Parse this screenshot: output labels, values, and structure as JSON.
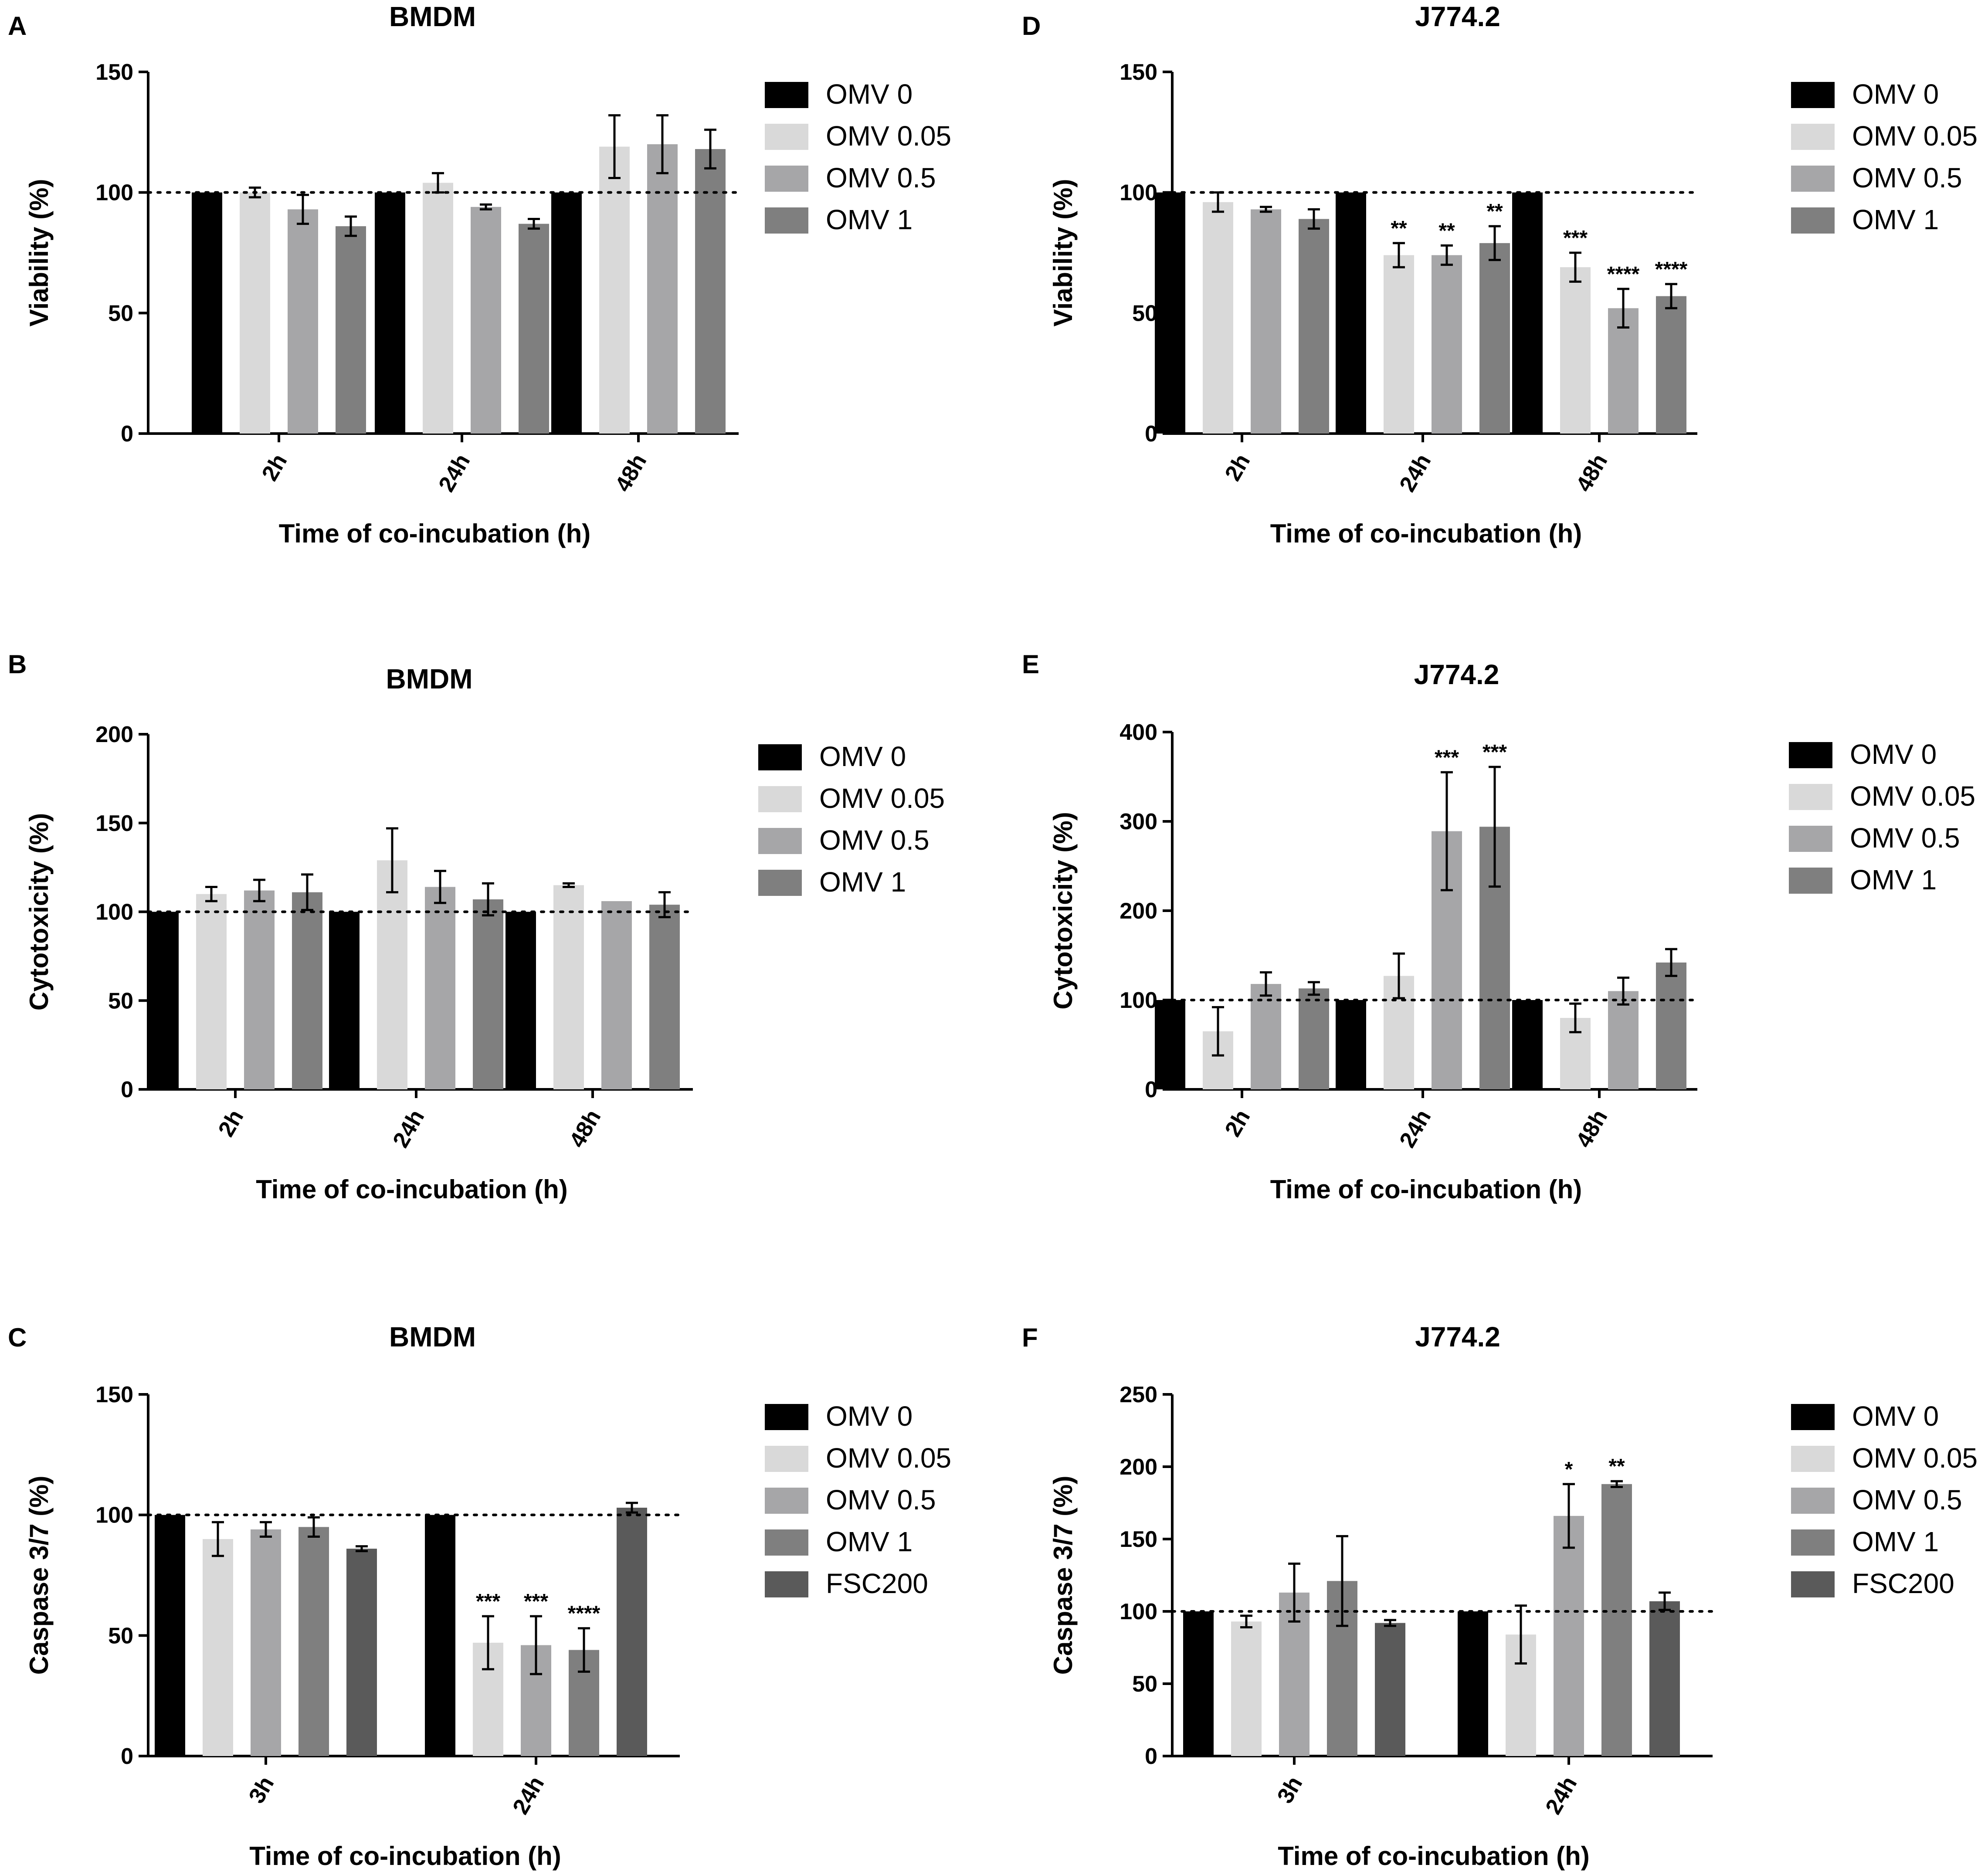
{
  "figure": {
    "panels": [
      {
        "letter": "A"
      },
      {
        "letter": "D"
      },
      {
        "letter": "B"
      },
      {
        "letter": "E"
      },
      {
        "letter": "C"
      },
      {
        "letter": "F"
      }
    ]
  },
  "chart_data": [
    {
      "type": "bar",
      "panel": "A",
      "title": "BMDM",
      "xlabel": "Time of co-incubation (h)",
      "ylabel": "Viability (%)",
      "ylim": [
        0,
        150
      ],
      "yticks": [
        0,
        50,
        100,
        150
      ],
      "reference_line": 100,
      "categories": [
        "2h",
        "24h",
        "48h"
      ],
      "series": [
        {
          "name": "OMV 0",
          "color": "#000000",
          "values": [
            100,
            100,
            100
          ],
          "errors": [
            0,
            0,
            0
          ]
        },
        {
          "name": "OMV 0.05",
          "color": "#d9d9d9",
          "values": [
            100,
            104,
            119
          ],
          "errors": [
            2,
            4,
            13
          ]
        },
        {
          "name": "OMV 0.5",
          "color": "#a6a6a8",
          "values": [
            93,
            94,
            120
          ],
          "errors": [
            6,
            1,
            12
          ]
        },
        {
          "name": "OMV 1",
          "color": "#7f7f7f",
          "values": [
            86,
            87,
            118
          ],
          "errors": [
            4,
            2,
            8
          ]
        }
      ],
      "significance": []
    },
    {
      "type": "bar",
      "panel": "D",
      "title": "J774.2",
      "xlabel": "Time of co-incubation (h)",
      "ylabel": "Viability (%)",
      "ylim": [
        0,
        150
      ],
      "yticks": [
        0,
        50,
        100,
        150
      ],
      "reference_line": 100,
      "categories": [
        "2h",
        "24h",
        "48h"
      ],
      "series": [
        {
          "name": "OMV 0",
          "color": "#000000",
          "values": [
            100,
            100,
            100
          ],
          "errors": [
            0,
            0,
            0
          ]
        },
        {
          "name": "OMV 0.05",
          "color": "#d9d9d9",
          "values": [
            96,
            74,
            69
          ],
          "errors": [
            4,
            5,
            6
          ]
        },
        {
          "name": "OMV 0.5",
          "color": "#a6a6a8",
          "values": [
            93,
            74,
            52
          ],
          "errors": [
            1,
            4,
            8
          ]
        },
        {
          "name": "OMV 1",
          "color": "#7f7f7f",
          "values": [
            89,
            79,
            57
          ],
          "errors": [
            4,
            7,
            5
          ]
        }
      ],
      "significance": [
        {
          "category": 1,
          "series": 1,
          "label": "**"
        },
        {
          "category": 1,
          "series": 2,
          "label": "**"
        },
        {
          "category": 1,
          "series": 3,
          "label": "**"
        },
        {
          "category": 2,
          "series": 1,
          "label": "***"
        },
        {
          "category": 2,
          "series": 2,
          "label": "****"
        },
        {
          "category": 2,
          "series": 3,
          "label": "****"
        }
      ]
    },
    {
      "type": "bar",
      "panel": "B",
      "title": "BMDM",
      "xlabel": "Time of co-incubation (h)",
      "ylabel": "Cytotoxicity (%)",
      "ylim": [
        0,
        200
      ],
      "yticks": [
        0,
        50,
        100,
        150,
        200
      ],
      "reference_line": 100,
      "categories": [
        "2h",
        "24h",
        "48h"
      ],
      "series": [
        {
          "name": "OMV 0",
          "color": "#000000",
          "values": [
            100,
            100,
            100
          ],
          "errors": [
            0,
            0,
            0
          ]
        },
        {
          "name": "OMV 0.05",
          "color": "#d9d9d9",
          "values": [
            110,
            129,
            115
          ],
          "errors": [
            4,
            18,
            1
          ]
        },
        {
          "name": "OMV 0.5",
          "color": "#a6a6a8",
          "values": [
            112,
            114,
            106
          ],
          "errors": [
            6,
            9,
            0
          ]
        },
        {
          "name": "OMV 1",
          "color": "#7f7f7f",
          "values": [
            111,
            107,
            104
          ],
          "errors": [
            10,
            9,
            7
          ]
        }
      ],
      "significance": []
    },
    {
      "type": "bar",
      "panel": "E",
      "title": "J774.2",
      "xlabel": "Time of co-incubation (h)",
      "ylabel": "Cytotoxicity (%)",
      "ylim": [
        0,
        400
      ],
      "yticks": [
        0,
        100,
        200,
        300,
        400
      ],
      "reference_line": 100,
      "categories": [
        "2h",
        "24h",
        "48h"
      ],
      "series": [
        {
          "name": "OMV 0",
          "color": "#000000",
          "values": [
            100,
            100,
            100
          ],
          "errors": [
            0,
            0,
            0
          ]
        },
        {
          "name": "OMV 0.05",
          "color": "#d9d9d9",
          "values": [
            65,
            127,
            80
          ],
          "errors": [
            27,
            25,
            16
          ]
        },
        {
          "name": "OMV 0.5",
          "color": "#a6a6a8",
          "values": [
            118,
            289,
            110
          ],
          "errors": [
            13,
            66,
            15
          ]
        },
        {
          "name": "OMV 1",
          "color": "#7f7f7f",
          "values": [
            113,
            294,
            142
          ],
          "errors": [
            7,
            67,
            15
          ]
        }
      ],
      "significance": [
        {
          "category": 1,
          "series": 2,
          "label": "***"
        },
        {
          "category": 1,
          "series": 3,
          "label": "***"
        }
      ]
    },
    {
      "type": "bar",
      "panel": "C",
      "title": "BMDM",
      "xlabel": "Time of co-incubation (h)",
      "ylabel": "Caspase 3/7 (%)",
      "ylim": [
        0,
        150
      ],
      "yticks": [
        0,
        50,
        100,
        150
      ],
      "reference_line": 100,
      "categories": [
        "3h",
        "24h"
      ],
      "series": [
        {
          "name": "OMV 0",
          "color": "#000000",
          "values": [
            100,
            100
          ],
          "errors": [
            0,
            0
          ]
        },
        {
          "name": "OMV 0.05",
          "color": "#d9d9d9",
          "values": [
            90,
            47
          ],
          "errors": [
            7,
            11
          ]
        },
        {
          "name": "OMV 0.5",
          "color": "#a6a6a8",
          "values": [
            94,
            46
          ],
          "errors": [
            3,
            12
          ]
        },
        {
          "name": "OMV 1",
          "color": "#7f7f7f",
          "values": [
            95,
            44
          ],
          "errors": [
            4,
            9
          ]
        },
        {
          "name": "FSC200",
          "color": "#5a5a5a",
          "values": [
            86,
            103
          ],
          "errors": [
            1,
            2
          ]
        }
      ],
      "significance": [
        {
          "category": 1,
          "series": 1,
          "label": "***"
        },
        {
          "category": 1,
          "series": 2,
          "label": "***"
        },
        {
          "category": 1,
          "series": 3,
          "label": "****"
        }
      ]
    },
    {
      "type": "bar",
      "panel": "F",
      "title": "J774.2",
      "xlabel": "Time of co-incubation (h)",
      "ylabel": "Caspase 3/7 (%)",
      "ylim": [
        0,
        250
      ],
      "yticks": [
        0,
        50,
        100,
        150,
        200,
        250
      ],
      "reference_line": 100,
      "categories": [
        "3h",
        "24h"
      ],
      "series": [
        {
          "name": "OMV 0",
          "color": "#000000",
          "values": [
            100,
            100
          ],
          "errors": [
            0,
            0
          ]
        },
        {
          "name": "OMV 0.05",
          "color": "#d9d9d9",
          "values": [
            93,
            84
          ],
          "errors": [
            4,
            20
          ]
        },
        {
          "name": "OMV 0.5",
          "color": "#a6a6a8",
          "values": [
            113,
            166
          ],
          "errors": [
            20,
            22
          ]
        },
        {
          "name": "OMV 1",
          "color": "#7f7f7f",
          "values": [
            121,
            188
          ],
          "errors": [
            31,
            2
          ]
        },
        {
          "name": "FSC200",
          "color": "#5a5a5a",
          "values": [
            92,
            107
          ],
          "errors": [
            2,
            6
          ]
        }
      ],
      "significance": [
        {
          "category": 1,
          "series": 2,
          "label": "*"
        },
        {
          "category": 1,
          "series": 3,
          "label": "**"
        }
      ]
    }
  ]
}
